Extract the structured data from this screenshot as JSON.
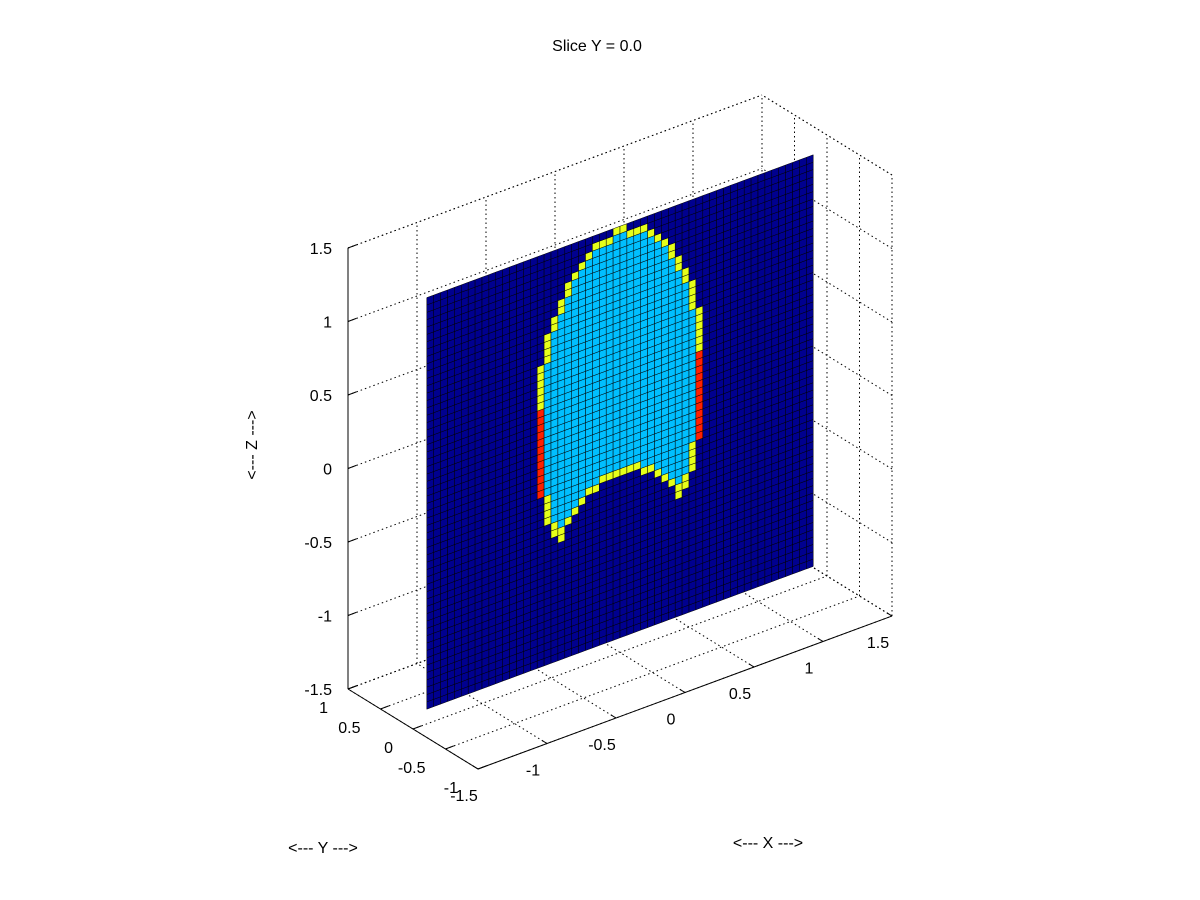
{
  "chart_data": {
    "type": "heatmap",
    "title": "Slice Y = 0.0",
    "xlabel": "<--- X --->",
    "ylabel": "<--- Y --->",
    "zlabel": "<--- Z --->",
    "x_ticks": [
      "-1.5",
      "-1",
      "-0.5",
      "0",
      "0.5",
      "1",
      "1.5"
    ],
    "y_ticks": [
      "-1",
      "-0.5",
      "0",
      "0.5",
      "1"
    ],
    "z_ticks": [
      "-1.5",
      "-1",
      "-0.5",
      "0",
      "0.5",
      "1",
      "1.5"
    ],
    "xlim": [
      -1.5,
      1.5
    ],
    "ylim": [
      -1,
      1
    ],
    "zlim": [
      -1.5,
      1.5
    ],
    "grid": true,
    "slice": {
      "plane": "y",
      "value": 0.0,
      "x_range": [
        -1.4,
        1.4
      ],
      "z_range": [
        -1.4,
        1.4
      ],
      "resolution": 56
    },
    "colors": {
      "background": "#00008f",
      "interior": "#00bfff",
      "boundary": "#e6ff1a",
      "hotspot": "#ff2000",
      "edge": "#000000"
    },
    "legend": "none"
  }
}
